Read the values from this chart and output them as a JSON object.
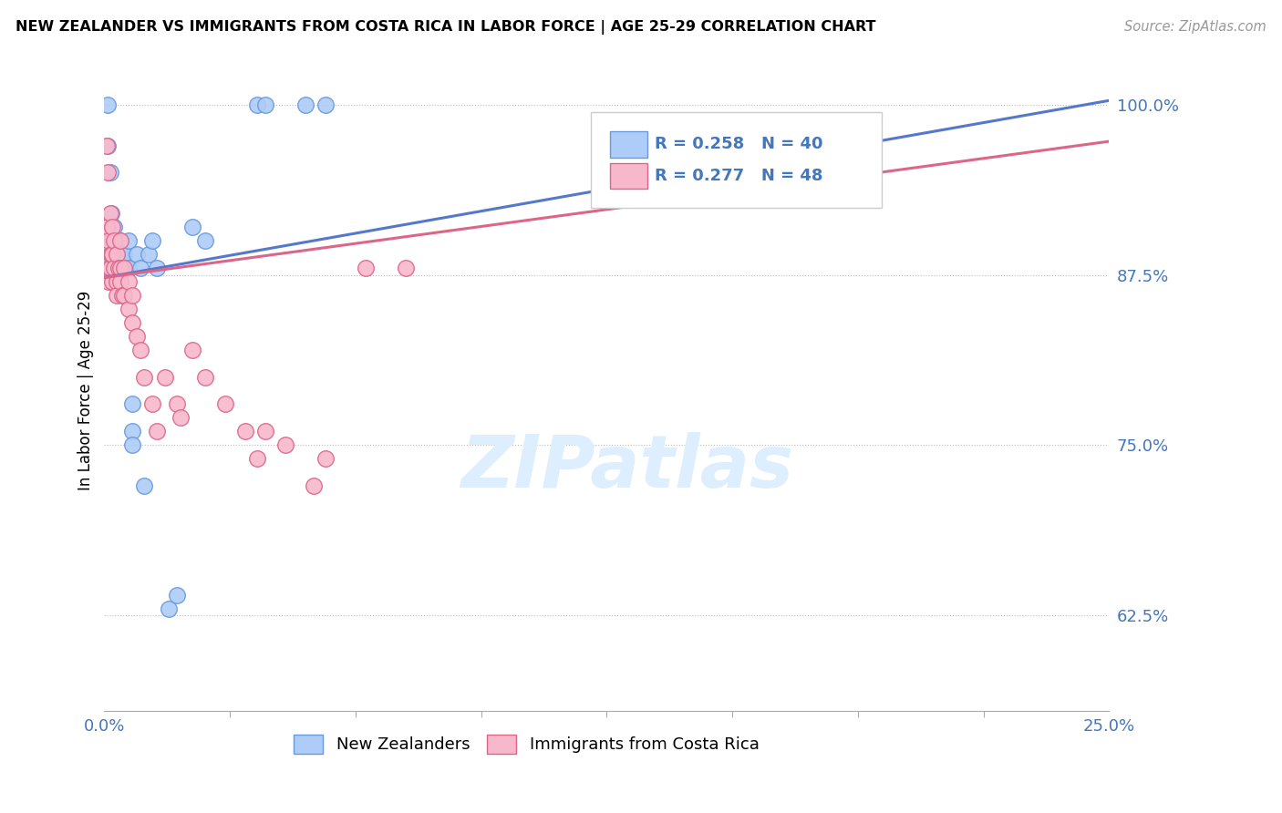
{
  "title": "NEW ZEALANDER VS IMMIGRANTS FROM COSTA RICA IN LABOR FORCE | AGE 25-29 CORRELATION CHART",
  "source": "Source: ZipAtlas.com",
  "ylabel": "In Labor Force | Age 25-29",
  "legend1_label": "New Zealanders",
  "legend2_label": "Immigrants from Costa Rica",
  "R_nz": 0.258,
  "N_nz": 40,
  "R_cr": 0.277,
  "N_cr": 48,
  "blue_fill": "#aeccf8",
  "blue_edge": "#6699dd",
  "pink_fill": "#f8b8cc",
  "pink_edge": "#dd6688",
  "line_blue": "#5577cc",
  "line_pink": "#dd6688",
  "text_blue": "#4477bb",
  "watermark_color": "#ddeeff",
  "x_min": 0.0,
  "x_max": 0.25,
  "y_min": 0.555,
  "y_max": 1.025,
  "nz_x": [
    0.0008,
    0.0008,
    0.0008,
    0.0015,
    0.0015,
    0.0018,
    0.002,
    0.002,
    0.002,
    0.0025,
    0.0025,
    0.003,
    0.003,
    0.003,
    0.0035,
    0.004,
    0.004,
    0.004,
    0.0045,
    0.005,
    0.005,
    0.006,
    0.006,
    0.007,
    0.007,
    0.007,
    0.008,
    0.009,
    0.01,
    0.011,
    0.012,
    0.013,
    0.016,
    0.018,
    0.022,
    0.025,
    0.038,
    0.04,
    0.05,
    0.055
  ],
  "nz_y": [
    0.97,
    0.91,
    1.0,
    0.95,
    0.89,
    0.92,
    0.9,
    0.88,
    0.87,
    0.91,
    0.88,
    0.9,
    0.88,
    0.87,
    0.89,
    0.9,
    0.89,
    0.88,
    0.88,
    0.89,
    0.88,
    0.9,
    0.88,
    0.78,
    0.76,
    0.75,
    0.89,
    0.88,
    0.72,
    0.89,
    0.9,
    0.88,
    0.63,
    0.64,
    0.91,
    0.9,
    1.0,
    1.0,
    1.0,
    1.0
  ],
  "cr_x": [
    0.0006,
    0.0006,
    0.0008,
    0.001,
    0.001,
    0.001,
    0.0015,
    0.0015,
    0.0018,
    0.002,
    0.002,
    0.002,
    0.0025,
    0.0025,
    0.003,
    0.003,
    0.003,
    0.0035,
    0.004,
    0.004,
    0.004,
    0.0045,
    0.005,
    0.005,
    0.006,
    0.006,
    0.007,
    0.007,
    0.008,
    0.009,
    0.01,
    0.012,
    0.013,
    0.015,
    0.018,
    0.019,
    0.022,
    0.025,
    0.03,
    0.035,
    0.038,
    0.04,
    0.045,
    0.052,
    0.055,
    0.065,
    0.075,
    0.18
  ],
  "cr_y": [
    0.97,
    0.91,
    0.95,
    0.9,
    0.88,
    0.87,
    0.92,
    0.88,
    0.89,
    0.91,
    0.89,
    0.87,
    0.9,
    0.88,
    0.89,
    0.87,
    0.86,
    0.88,
    0.9,
    0.88,
    0.87,
    0.86,
    0.88,
    0.86,
    0.87,
    0.85,
    0.86,
    0.84,
    0.83,
    0.82,
    0.8,
    0.78,
    0.76,
    0.8,
    0.78,
    0.77,
    0.82,
    0.8,
    0.78,
    0.76,
    0.74,
    0.76,
    0.75,
    0.72,
    0.74,
    0.88,
    0.88,
    0.95
  ]
}
